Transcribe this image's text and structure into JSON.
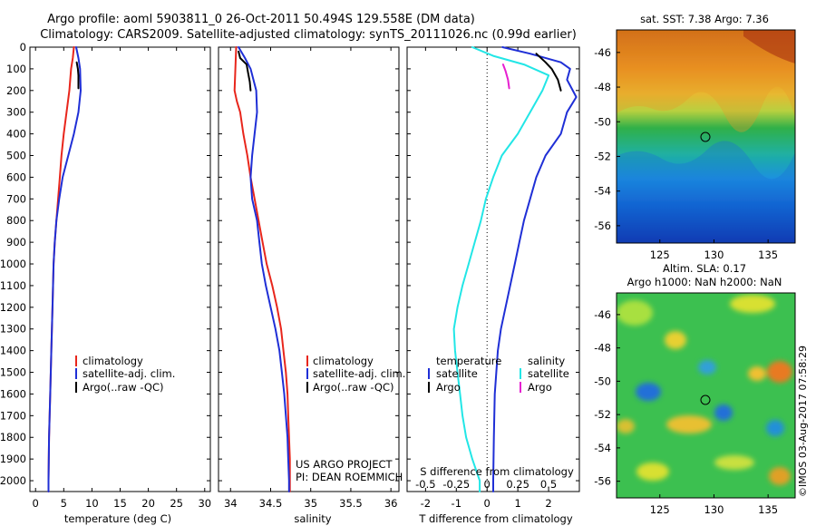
{
  "header": {
    "line1": "Argo profile: aoml 5903811_0 26-Oct-2011 50.494S 129.558E (DM data)",
    "line2": "Climatology: CARS2009. Satellite-adjusted climatology: synTS_20111026.nc (0.99d earlier)"
  },
  "colors": {
    "climatology": "#e8261c",
    "satellite": "#1f2fd6",
    "argo": "#000000",
    "salinity_satellite": "#22e6e6",
    "salinity_argo": "#e61fd0"
  },
  "chart_data": [
    {
      "type": "line",
      "panel": "temperature",
      "xlabel": "temperature (deg C)",
      "ylabel": "",
      "xlim": [
        -1,
        31
      ],
      "xticks": [
        "0",
        "5",
        "10",
        "15",
        "20",
        "25",
        "30"
      ],
      "ylim": [
        2050,
        0
      ],
      "yticks": [
        "0",
        "100",
        "200",
        "300",
        "400",
        "500",
        "600",
        "700",
        "800",
        "900",
        "1000",
        "1100",
        "1200",
        "1300",
        "1400",
        "1500",
        "1600",
        "1700",
        "1800",
        "1900",
        "2000"
      ],
      "legend": [
        "climatology",
        "satellite-adj. clim.",
        "Argo(..raw -QC)"
      ],
      "series": [
        {
          "name": "climatology",
          "color": "climatology",
          "points": [
            [
              6.8,
              0
            ],
            [
              6.6,
              50
            ],
            [
              6.3,
              100
            ],
            [
              6.0,
              200
            ],
            [
              5.5,
              300
            ],
            [
              5.0,
              400
            ],
            [
              4.6,
              500
            ],
            [
              4.3,
              600
            ],
            [
              4.0,
              700
            ],
            [
              3.7,
              800
            ],
            [
              3.4,
              900
            ],
            [
              3.2,
              1000
            ],
            [
              3.0,
              1200
            ],
            [
              2.8,
              1400
            ],
            [
              2.6,
              1600
            ],
            [
              2.4,
              1800
            ],
            [
              2.3,
              2000
            ],
            [
              2.3,
              2050
            ]
          ]
        },
        {
          "name": "satellite-adj. clim.",
          "color": "satellite",
          "points": [
            [
              7.2,
              0
            ],
            [
              7.6,
              50
            ],
            [
              7.9,
              100
            ],
            [
              8.0,
              200
            ],
            [
              7.6,
              300
            ],
            [
              6.8,
              400
            ],
            [
              5.8,
              500
            ],
            [
              4.8,
              600
            ],
            [
              4.2,
              700
            ],
            [
              3.7,
              800
            ],
            [
              3.4,
              900
            ],
            [
              3.2,
              1000
            ],
            [
              3.0,
              1200
            ],
            [
              2.8,
              1400
            ],
            [
              2.6,
              1600
            ],
            [
              2.4,
              1800
            ],
            [
              2.3,
              2000
            ],
            [
              2.3,
              2050
            ]
          ]
        },
        {
          "name": "Argo(..raw -QC)",
          "color": "argo",
          "points": [
            [
              7.3,
              70
            ],
            [
              7.5,
              100
            ],
            [
              7.6,
              130
            ],
            [
              7.6,
              160
            ],
            [
              7.6,
              190
            ]
          ]
        }
      ]
    },
    {
      "type": "line",
      "panel": "salinity",
      "xlabel": "salinity",
      "ylabel": "",
      "xlim": [
        33.85,
        36.1
      ],
      "xticks": [
        "34",
        "34.5",
        "35",
        "35.5",
        "36"
      ],
      "ylim": [
        2050,
        0
      ],
      "legend": [
        "climatology",
        "satellite-adj. clim.",
        "Argo(..raw -QC)"
      ],
      "annotation": [
        "US ARGO PROJECT",
        "PI: DEAN ROEMMICH"
      ],
      "series": [
        {
          "name": "climatology",
          "color": "climatology",
          "points": [
            [
              34.07,
              0
            ],
            [
              34.06,
              100
            ],
            [
              34.05,
              200
            ],
            [
              34.08,
              250
            ],
            [
              34.12,
              300
            ],
            [
              34.16,
              400
            ],
            [
              34.21,
              500
            ],
            [
              34.25,
              600
            ],
            [
              34.3,
              700
            ],
            [
              34.35,
              800
            ],
            [
              34.4,
              900
            ],
            [
              34.45,
              1000
            ],
            [
              34.52,
              1100
            ],
            [
              34.58,
              1200
            ],
            [
              34.63,
              1300
            ],
            [
              34.66,
              1400
            ],
            [
              34.69,
              1500
            ],
            [
              34.71,
              1600
            ],
            [
              34.72,
              1700
            ],
            [
              34.73,
              1800
            ],
            [
              34.74,
              1900
            ],
            [
              34.74,
              2000
            ],
            [
              34.74,
              2050
            ]
          ]
        },
        {
          "name": "satellite-adj. clim.",
          "color": "satellite",
          "points": [
            [
              34.1,
              0
            ],
            [
              34.18,
              50
            ],
            [
              34.25,
              100
            ],
            [
              34.32,
              200
            ],
            [
              34.33,
              300
            ],
            [
              34.3,
              400
            ],
            [
              34.27,
              500
            ],
            [
              34.25,
              600
            ],
            [
              34.27,
              700
            ],
            [
              34.33,
              800
            ],
            [
              34.36,
              900
            ],
            [
              34.39,
              1000
            ],
            [
              34.44,
              1100
            ],
            [
              34.5,
              1200
            ],
            [
              34.56,
              1300
            ],
            [
              34.61,
              1400
            ],
            [
              34.64,
              1500
            ],
            [
              34.67,
              1600
            ],
            [
              34.69,
              1700
            ],
            [
              34.71,
              1800
            ],
            [
              34.72,
              1900
            ],
            [
              34.73,
              2000
            ],
            [
              34.73,
              2050
            ]
          ]
        },
        {
          "name": "Argo(..raw -QC)",
          "color": "argo",
          "points": [
            [
              34.1,
              20
            ],
            [
              34.12,
              50
            ],
            [
              34.2,
              80
            ],
            [
              34.22,
              120
            ],
            [
              34.24,
              160
            ],
            [
              34.25,
              200
            ]
          ]
        }
      ]
    },
    {
      "type": "line",
      "panel": "difference",
      "xlabel": "T difference from climatology",
      "xlabel_top": "S difference from climatology",
      "xlim": [
        -2.6,
        3.0
      ],
      "xticks_T": [
        "-2",
        "-1",
        "0",
        "1",
        "2"
      ],
      "xticks_S": [
        "-0.5",
        "-0.25",
        "0",
        "0.25",
        "0.5"
      ],
      "ylim": [
        2050,
        0
      ],
      "legend_temperature": {
        "title": "temperature",
        "items": [
          "satellite",
          "Argo"
        ]
      },
      "legend_salinity": {
        "title": "salinity",
        "items": [
          "satellite",
          "Argo"
        ]
      },
      "series": [
        {
          "name": "temperature satellite",
          "color": "satellite",
          "points": [
            [
              0.5,
              0
            ],
            [
              1.4,
              30
            ],
            [
              2.4,
              70
            ],
            [
              2.7,
              100
            ],
            [
              2.6,
              150
            ],
            [
              2.9,
              230
            ],
            [
              2.6,
              300
            ],
            [
              2.4,
              400
            ],
            [
              1.9,
              500
            ],
            [
              1.6,
              600
            ],
            [
              1.4,
              700
            ],
            [
              1.2,
              800
            ],
            [
              1.05,
              900
            ],
            [
              0.9,
              1000
            ],
            [
              0.75,
              1100
            ],
            [
              0.6,
              1200
            ],
            [
              0.45,
              1300
            ],
            [
              0.35,
              1400
            ],
            [
              0.3,
              1500
            ],
            [
              0.25,
              1600
            ],
            [
              0.22,
              1800
            ],
            [
              0.2,
              2000
            ],
            [
              0.2,
              2050
            ]
          ]
        },
        {
          "name": "temperature Argo",
          "color": "argo",
          "points": [
            [
              1.6,
              30
            ],
            [
              1.9,
              70
            ],
            [
              2.1,
              100
            ],
            [
              2.3,
              150
            ],
            [
              2.4,
              200
            ]
          ]
        },
        {
          "name": "salinity satellite",
          "color": "salinity_satellite",
          "points": [
            [
              -0.12,
              0
            ],
            [
              0.05,
              40
            ],
            [
              0.3,
              80
            ],
            [
              0.5,
              130
            ],
            [
              0.45,
              200
            ],
            [
              0.35,
              300
            ],
            [
              0.25,
              400
            ],
            [
              0.12,
              500
            ],
            [
              0.05,
              600
            ],
            [
              -0.01,
              700
            ],
            [
              -0.05,
              800
            ],
            [
              -0.1,
              900
            ],
            [
              -0.15,
              1000
            ],
            [
              -0.2,
              1100
            ],
            [
              -0.24,
              1200
            ],
            [
              -0.27,
              1300
            ],
            [
              -0.26,
              1400
            ],
            [
              -0.24,
              1500
            ],
            [
              -0.22,
              1600
            ],
            [
              -0.2,
              1700
            ],
            [
              -0.17,
              1800
            ],
            [
              -0.12,
              1900
            ],
            [
              -0.06,
              2000
            ],
            [
              -0.06,
              2050
            ]
          ]
        },
        {
          "name": "salinity Argo",
          "color": "salinity_argo",
          "points": [
            [
              0.13,
              80
            ],
            [
              0.15,
              110
            ],
            [
              0.17,
              150
            ],
            [
              0.18,
              190
            ]
          ]
        }
      ]
    },
    {
      "type": "heatmap",
      "panel": "sst_map",
      "title": "sat. SST: 7.38 Argo: 7.36",
      "xticks": [
        "125",
        "130",
        "135"
      ],
      "yticks": [
        "-46",
        "-48",
        "-50",
        "-52",
        "-54",
        "-56"
      ],
      "xlim": [
        121,
        137.5
      ],
      "ylim": [
        -57,
        -44.7
      ],
      "argo_position": {
        "lon": 129.558,
        "lat": -50.494
      }
    },
    {
      "type": "heatmap",
      "panel": "sla_map",
      "title": "Altim. SLA: 0.17",
      "subtitle": "Argo h1000: NaN h2000: NaN",
      "xticks": [
        "125",
        "130",
        "135"
      ],
      "yticks": [
        "-46",
        "-48",
        "-50",
        "-52",
        "-54",
        "-56"
      ],
      "xlim": [
        121,
        137.5
      ],
      "ylim": [
        -57,
        -44.7
      ],
      "argo_position": {
        "lon": 129.558,
        "lat": -50.494
      }
    }
  ],
  "watermark": "©IMOS 03-Aug-2017 07:58:29"
}
